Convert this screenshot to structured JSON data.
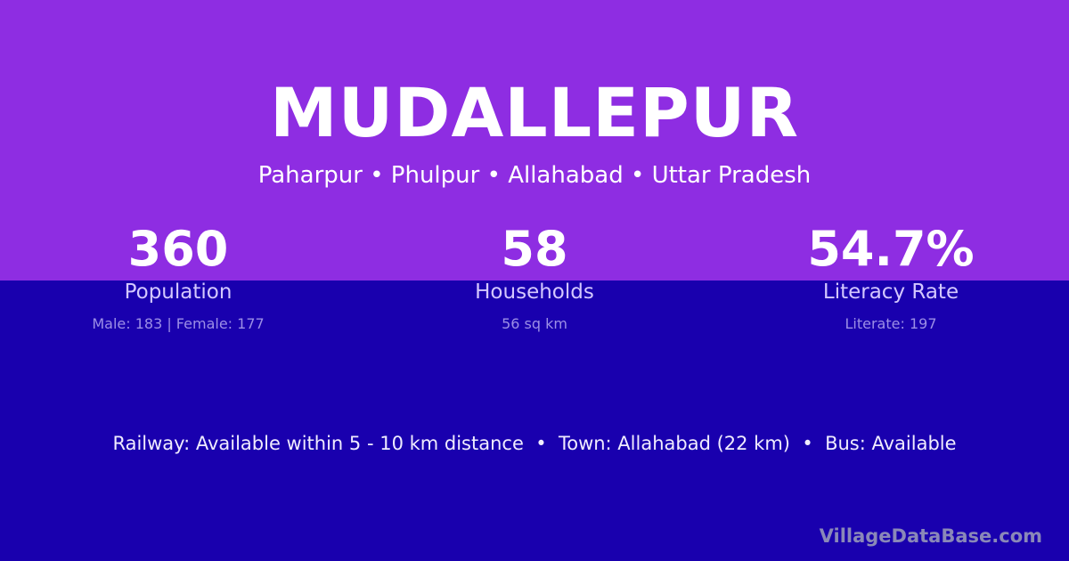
{
  "colors": {
    "top_bg": "#8e2de2",
    "bottom_bg": "#1900ae"
  },
  "title": "MUDALLEPUR",
  "subtitle": "Paharpur • Phulpur • Allahabad • Uttar Pradesh",
  "stats": [
    {
      "value": "360",
      "label": "Population",
      "sub": "Male: 183 | Female: 177"
    },
    {
      "value": "58",
      "label": "Households",
      "sub": "56 sq km"
    },
    {
      "value": "54.7%",
      "label": "Literacy Rate",
      "sub": "Literate: 197"
    }
  ],
  "info": "Railway: Available within 5 - 10 km distance  •  Town: Allahabad (22 km)  •  Bus: Available",
  "brand": "VillageDataBase.com"
}
